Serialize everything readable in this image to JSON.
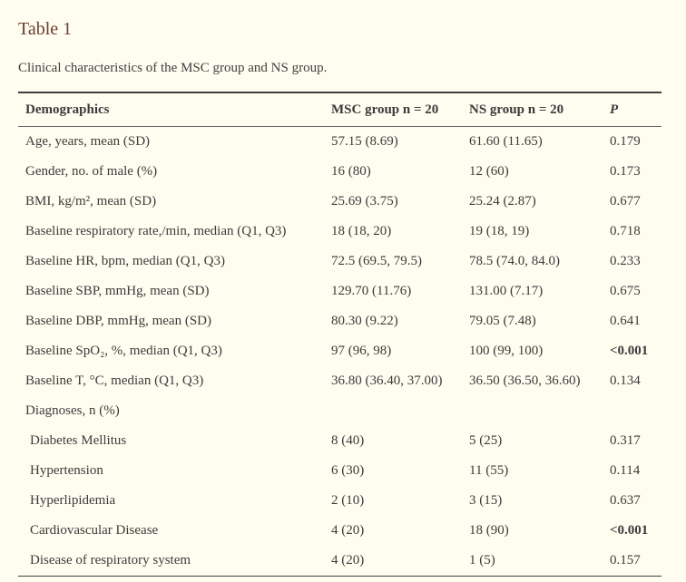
{
  "page": {
    "title": "Table 1",
    "caption": "Clinical characteristics of the MSC group and NS group."
  },
  "colors": {
    "background": "#fffdf0",
    "title_text": "#6b3f2e",
    "body_text": "#3b3b3b",
    "border": "#3f3f3f"
  },
  "table": {
    "headers": {
      "demographics": "Demographics",
      "msc": "MSC group n = 20",
      "ns": "NS group n = 20",
      "p": "P"
    },
    "rows": [
      {
        "label": "Age, years, mean (SD)",
        "msc": "57.15 (8.69)",
        "ns": "61.60 (11.65)",
        "p": "0.179",
        "section": false,
        "indent": false,
        "p_bold": false
      },
      {
        "label": "Gender, no. of male (%)",
        "msc": "16 (80)",
        "ns": "12 (60)",
        "p": "0.173",
        "section": false,
        "indent": false,
        "p_bold": false
      },
      {
        "label": "BMI, kg/m², mean (SD)",
        "msc": "25.69 (3.75)",
        "ns": "25.24 (2.87)",
        "p": "0.677",
        "section": false,
        "indent": false,
        "p_bold": false
      },
      {
        "label": "Baseline respiratory rate,/min, median (Q1, Q3)",
        "msc": "18 (18, 20)",
        "ns": "19 (18, 19)",
        "p": "0.718",
        "section": false,
        "indent": false,
        "p_bold": false
      },
      {
        "label": "Baseline HR, bpm, median (Q1, Q3)",
        "msc": "72.5 (69.5, 79.5)",
        "ns": "78.5 (74.0, 84.0)",
        "p": "0.233",
        "section": false,
        "indent": false,
        "p_bold": false
      },
      {
        "label": "Baseline SBP, mmHg, mean (SD)",
        "msc": "129.70 (11.76)",
        "ns": "131.00 (7.17)",
        "p": "0.675",
        "section": false,
        "indent": false,
        "p_bold": false
      },
      {
        "label": "Baseline DBP, mmHg, mean (SD)",
        "msc": "80.30 (9.22)",
        "ns": "79.05 (7.48)",
        "p": "0.641",
        "section": false,
        "indent": false,
        "p_bold": false
      },
      {
        "label": "Baseline SpO₂, %, median (Q1, Q3)",
        "msc": "97 (96, 98)",
        "ns": "100 (99, 100)",
        "p": "<0.001",
        "section": false,
        "indent": false,
        "p_bold": true
      },
      {
        "label": "Baseline T, °C, median (Q1, Q3)",
        "msc": "36.80 (36.40, 37.00)",
        "ns": "36.50 (36.50, 36.60)",
        "p": "0.134",
        "section": false,
        "indent": false,
        "p_bold": false
      },
      {
        "label": "Diagnoses, n (%)",
        "msc": "",
        "ns": "",
        "p": "",
        "section": true,
        "indent": false,
        "p_bold": false
      },
      {
        "label": "Diabetes Mellitus",
        "msc": "8 (40)",
        "ns": "5 (25)",
        "p": "0.317",
        "section": false,
        "indent": true,
        "p_bold": false
      },
      {
        "label": "Hypertension",
        "msc": "6 (30)",
        "ns": "11 (55)",
        "p": "0.114",
        "section": false,
        "indent": true,
        "p_bold": false
      },
      {
        "label": "Hyperlipidemia",
        "msc": "2 (10)",
        "ns": "3 (15)",
        "p": "0.637",
        "section": false,
        "indent": true,
        "p_bold": false
      },
      {
        "label": "Cardiovascular Disease",
        "msc": "4 (20)",
        "ns": "18 (90)",
        "p": "<0.001",
        "section": false,
        "indent": true,
        "p_bold": true
      },
      {
        "label": "Disease of respiratory system",
        "msc": "4 (20)",
        "ns": "1 (5)",
        "p": "0.157",
        "section": false,
        "indent": true,
        "p_bold": false
      }
    ]
  }
}
